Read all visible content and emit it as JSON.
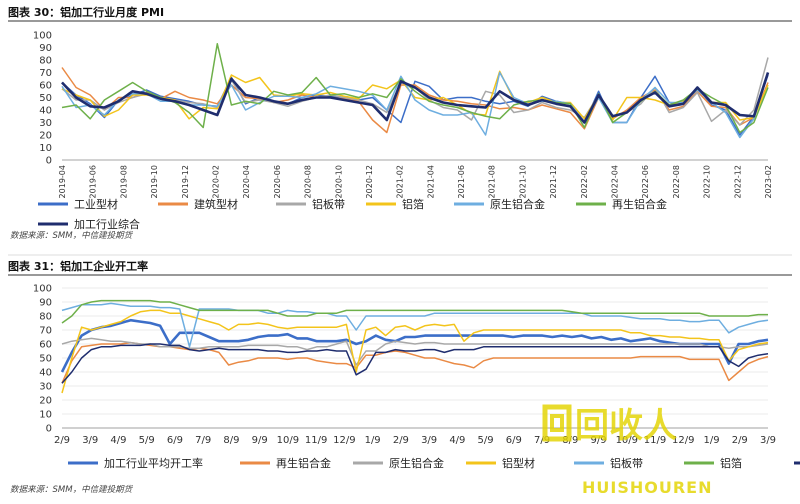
{
  "chart_data": [
    {
      "type": "line",
      "figure_label": "图表 30：铝加工行业月度 PMI",
      "source": "数据来源：SMM，中信建投期货",
      "ylim": [
        0,
        100
      ],
      "yticks": [
        0,
        10,
        20,
        30,
        40,
        50,
        60,
        70,
        80,
        90,
        100
      ],
      "x_tick_labels": [
        "2019-04",
        "2019-06",
        "2019-08",
        "2019-10",
        "2019-12",
        "2020-02",
        "2020-04",
        "2020-06",
        "2020-08",
        "2020-10",
        "2020-12",
        "2021-02",
        "2021-04",
        "2021-06",
        "2021-08",
        "2021-10",
        "2021-12",
        "2022-02",
        "2022-04",
        "2022-06",
        "2022-08",
        "2022-10",
        "2022-12",
        "2023-02"
      ],
      "legend_position": "bottom",
      "series": [
        {
          "name": "工业型材",
          "color": "#3c6ec8",
          "values": [
            62,
            52,
            45,
            34,
            48,
            52,
            56,
            51,
            49,
            47,
            44,
            43,
            66,
            45,
            50,
            47,
            45,
            50,
            52,
            51,
            49,
            48,
            50,
            40,
            30,
            63,
            59,
            48,
            50,
            50,
            47,
            45,
            47,
            43,
            51,
            47,
            45,
            30,
            55,
            30,
            30,
            50,
            67,
            46,
            45,
            58,
            44,
            40,
            20,
            35,
            68
          ]
        },
        {
          "name": "建筑型材",
          "color": "#ea8a45",
          "values": [
            74,
            58,
            52,
            40,
            50,
            50,
            54,
            49,
            55,
            50,
            48,
            45,
            60,
            50,
            49,
            46,
            48,
            52,
            50,
            50,
            49,
            47,
            32,
            22,
            60,
            60,
            52,
            48,
            47,
            45,
            44,
            41,
            42,
            40,
            44,
            41,
            38,
            25,
            50,
            33,
            40,
            50,
            56,
            40,
            43,
            55,
            43,
            42,
            28,
            34,
            62
          ]
        },
        {
          "name": "铝板带",
          "color": "#a8a8a8",
          "values": [
            57,
            48,
            48,
            40,
            46,
            50,
            53,
            50,
            48,
            46,
            45,
            42,
            64,
            46,
            48,
            46,
            43,
            47,
            50,
            52,
            50,
            48,
            45,
            38,
            62,
            58,
            48,
            42,
            40,
            32,
            55,
            52,
            38,
            40,
            46,
            42,
            40,
            34,
            52,
            35,
            38,
            45,
            58,
            38,
            42,
            54,
            31,
            40,
            28,
            40,
            82
          ]
        },
        {
          "name": "铝箔",
          "color": "#f3c41b",
          "values": [
            57,
            52,
            48,
            35,
            40,
            52,
            52,
            50,
            48,
            33,
            42,
            41,
            68,
            62,
            66,
            52,
            51,
            53,
            52,
            54,
            51,
            49,
            60,
            57,
            64,
            50,
            48,
            50,
            44,
            37,
            36,
            71,
            48,
            46,
            50,
            46,
            46,
            33,
            52,
            32,
            50,
            50,
            48,
            44,
            47,
            57,
            46,
            46,
            32,
            34,
            60
          ]
        },
        {
          "name": "原生铝合金",
          "color": "#6eaee0",
          "values": [
            59,
            42,
            44,
            36,
            48,
            53,
            53,
            47,
            47,
            44,
            44,
            43,
            60,
            40,
            46,
            51,
            51,
            50,
            53,
            59,
            57,
            55,
            52,
            40,
            67,
            48,
            40,
            36,
            36,
            38,
            20,
            70,
            50,
            45,
            47,
            47,
            45,
            30,
            50,
            30,
            30,
            48,
            58,
            46,
            46,
            56,
            46,
            38,
            18,
            33,
            70
          ]
        },
        {
          "name": "再生铝合金",
          "color": "#6eb04a",
          "values": [
            42,
            44,
            33,
            48,
            55,
            62,
            55,
            50,
            46,
            38,
            26,
            93,
            44,
            47,
            45,
            55,
            52,
            54,
            66,
            52,
            53,
            50,
            53,
            50,
            65,
            55,
            47,
            44,
            42,
            38,
            35,
            33,
            44,
            47,
            48,
            46,
            45,
            26,
            53,
            30,
            38,
            47,
            55,
            44,
            48,
            57,
            50,
            44,
            22,
            30,
            58
          ]
        },
        {
          "name": "加工行业综合",
          "color": "#1f2d6e",
          "values": [
            62,
            50,
            43,
            42,
            47,
            55,
            53,
            49,
            47,
            44,
            40,
            36,
            65,
            52,
            50,
            47,
            45,
            48,
            50,
            50,
            48,
            46,
            44,
            32,
            63,
            58,
            50,
            46,
            44,
            43,
            42,
            55,
            48,
            44,
            48,
            45,
            43,
            30,
            52,
            35,
            38,
            48,
            54,
            43,
            45,
            58,
            46,
            44,
            36,
            35,
            70
          ]
        }
      ]
    },
    {
      "type": "line",
      "figure_label": "图表 31：铝加工企业开工率",
      "source": "数据来源：SMM，中信建投期货",
      "ylim": [
        0,
        100
      ],
      "yticks": [
        0,
        10,
        20,
        30,
        40,
        50,
        60,
        70,
        80,
        90,
        100
      ],
      "x_tick_labels": [
        "2/9",
        "3/9",
        "4/9",
        "5/9",
        "6/9",
        "7/9",
        "8/9",
        "9/9",
        "10/9",
        "11/9",
        "12/9",
        "1/9",
        "2/9",
        "3/9",
        "4/9",
        "5/9",
        "6/9",
        "7/9",
        "8/9",
        "9/9",
        "10/9",
        "11/9",
        "12/9",
        "1/9",
        "2/9",
        "3/9"
      ],
      "legend_position": "bottom",
      "series": [
        {
          "name": "加工行业平均开工率",
          "color": "#3c6ec8",
          "values": [
            40,
            54,
            66,
            70,
            72,
            73,
            75,
            77,
            76,
            75,
            73,
            60,
            68,
            68,
            68,
            65,
            62,
            62,
            62,
            63,
            65,
            66,
            66,
            67,
            64,
            64,
            62,
            62,
            62,
            63,
            60,
            62,
            66,
            63,
            62,
            65,
            65,
            66,
            66,
            66,
            66,
            66,
            66,
            66,
            66,
            66,
            65,
            66,
            66,
            66,
            65,
            66,
            65,
            66,
            64,
            65,
            63,
            64,
            62,
            63,
            64,
            62,
            61,
            60,
            60,
            60,
            60,
            60,
            46,
            60,
            60,
            62,
            63
          ]
        },
        {
          "name": "再生铝合金",
          "color": "#ea8a45",
          "values": [
            32,
            48,
            58,
            59,
            60,
            60,
            60,
            61,
            60,
            59,
            58,
            58,
            57,
            56,
            57,
            56,
            54,
            45,
            47,
            48,
            50,
            50,
            50,
            49,
            50,
            50,
            48,
            47,
            46,
            46,
            43,
            52,
            52,
            54,
            55,
            54,
            52,
            50,
            50,
            48,
            46,
            45,
            43,
            48,
            50,
            50,
            50,
            50,
            50,
            50,
            50,
            50,
            50,
            50,
            50,
            50,
            50,
            50,
            50,
            51,
            51,
            51,
            51,
            51,
            49,
            49,
            49,
            49,
            34,
            40,
            46,
            49,
            51
          ]
        },
        {
          "name": "原生铝合金",
          "color": "#a8a8a8",
          "values": [
            60,
            62,
            63,
            64,
            63,
            62,
            62,
            61,
            60,
            60,
            58,
            58,
            58,
            57,
            57,
            58,
            58,
            58,
            58,
            59,
            59,
            59,
            59,
            58,
            58,
            56,
            58,
            58,
            60,
            62,
            45,
            55,
            55,
            60,
            62,
            61,
            60,
            61,
            61,
            60,
            60,
            60,
            60,
            60,
            60,
            60,
            60,
            60,
            60,
            60,
            60,
            60,
            60,
            60,
            60,
            60,
            60,
            60,
            60,
            60,
            60,
            60,
            60,
            60,
            60,
            60,
            58,
            58,
            57,
            58,
            58,
            59,
            60
          ]
        },
        {
          "name": "铝型材",
          "color": "#f3c41b",
          "values": [
            25,
            50,
            72,
            70,
            72,
            74,
            76,
            80,
            83,
            84,
            84,
            82,
            82,
            80,
            78,
            76,
            74,
            70,
            74,
            74,
            75,
            74,
            72,
            71,
            72,
            72,
            72,
            72,
            72,
            74,
            40,
            70,
            72,
            66,
            72,
            73,
            70,
            73,
            74,
            73,
            74,
            62,
            68,
            70,
            70,
            70,
            70,
            70,
            70,
            70,
            70,
            70,
            70,
            70,
            70,
            70,
            70,
            70,
            68,
            68,
            66,
            66,
            65,
            65,
            64,
            64,
            63,
            63,
            48,
            56,
            58,
            60,
            61
          ]
        },
        {
          "name": "原生铝合金2",
          "color": "#6eaee0",
          "values": [
            84,
            86,
            88,
            88,
            88,
            89,
            88,
            87,
            87,
            87,
            86,
            86,
            85,
            58,
            85,
            85,
            85,
            85,
            84,
            84,
            84,
            82,
            82,
            84,
            83,
            83,
            82,
            82,
            80,
            80,
            70,
            80,
            80,
            80,
            80,
            80,
            80,
            80,
            82,
            82,
            82,
            82,
            82,
            82,
            82,
            82,
            82,
            82,
            82,
            82,
            82,
            82,
            82,
            82,
            80,
            80,
            80,
            80,
            79,
            78,
            78,
            78,
            77,
            77,
            76,
            76,
            77,
            77,
            68,
            72,
            74,
            76,
            77
          ]
        },
        {
          "name": "铝箔",
          "color": "#6eb04a",
          "values": [
            75,
            80,
            88,
            90,
            91,
            91,
            91,
            91,
            91,
            91,
            90,
            90,
            88,
            86,
            84,
            84,
            84,
            84,
            84,
            84,
            84,
            84,
            82,
            80,
            80,
            80,
            82,
            82,
            82,
            84,
            84,
            84,
            84,
            84,
            84,
            84,
            84,
            84,
            84,
            84,
            84,
            84,
            84,
            84,
            84,
            84,
            84,
            84,
            84,
            84,
            84,
            84,
            83,
            82,
            82,
            82,
            82,
            82,
            82,
            82,
            82,
            82,
            82,
            82,
            82,
            82,
            80,
            80,
            80,
            80,
            80,
            81,
            81
          ]
        },
        {
          "name": "铝线缆",
          "color": "#1f2d6e",
          "values": [
            32,
            40,
            50,
            56,
            58,
            58,
            59,
            59,
            59,
            60,
            60,
            59,
            59,
            56,
            55,
            56,
            57,
            56,
            56,
            56,
            56,
            55,
            55,
            54,
            54,
            55,
            55,
            56,
            55,
            55,
            38,
            42,
            54,
            54,
            56,
            55,
            55,
            56,
            56,
            54,
            56,
            56,
            56,
            58,
            58,
            58,
            58,
            58,
            58,
            58,
            58,
            58,
            58,
            58,
            58,
            58,
            58,
            58,
            58,
            58,
            58,
            58,
            58,
            58,
            58,
            58,
            58,
            58,
            48,
            44,
            50,
            52,
            53
          ]
        }
      ]
    }
  ],
  "watermark": {
    "main": "回收人",
    "sub": "HUISHOUREN"
  }
}
